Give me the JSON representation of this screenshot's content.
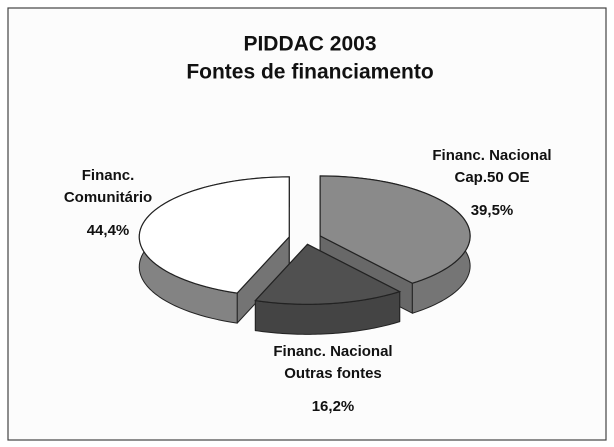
{
  "chart_data": {
    "type": "pie",
    "title": "PIDDAC 2003",
    "subtitle": "Fontes de financiamento",
    "categories": [
      [
        "Financ. Nacional",
        "Cap.50 OE"
      ],
      [
        "Financ. Nacional",
        "Outras fontes"
      ],
      [
        "Financ.",
        "Comunitário"
      ]
    ],
    "values": [
      39.5,
      16.2,
      44.4
    ],
    "value_labels": [
      "39,5%",
      "16,2%",
      "44,4%"
    ],
    "colors": [
      "#8a8a8a",
      "#505050",
      "#ffffff"
    ]
  }
}
